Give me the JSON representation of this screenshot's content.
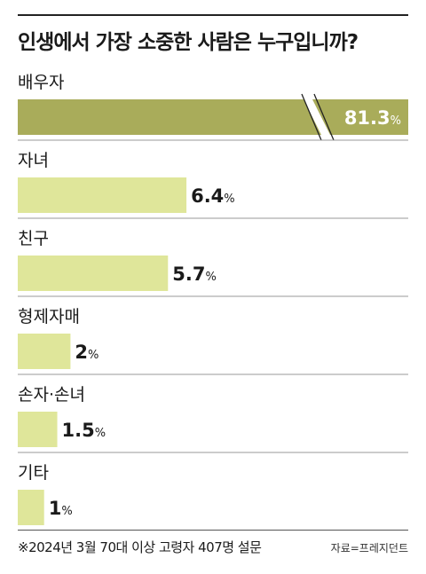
{
  "chart_data": {
    "type": "bar",
    "orientation": "horizontal",
    "title": "인생에서 가장 소중한 사람은 누구입니까?",
    "categories": [
      "배우자",
      "자녀",
      "친구",
      "형제자매",
      "손자·손녀",
      "기타"
    ],
    "values": [
      81.3,
      6.4,
      5.7,
      2,
      1.5,
      1
    ],
    "value_labels": [
      "81.3",
      "6.4",
      "5.7",
      "2",
      "1.5",
      "1"
    ],
    "unit": "%",
    "axis_break_on_first_bar": true,
    "colors": {
      "highlight": "#a9ac5a",
      "bar": "#dfe69a",
      "text_on_highlight": "#ffffff"
    }
  },
  "footer": {
    "note": "※2024년 3월 70대 이상 고령자 407명 설문",
    "source": "자료=프레지던트"
  }
}
